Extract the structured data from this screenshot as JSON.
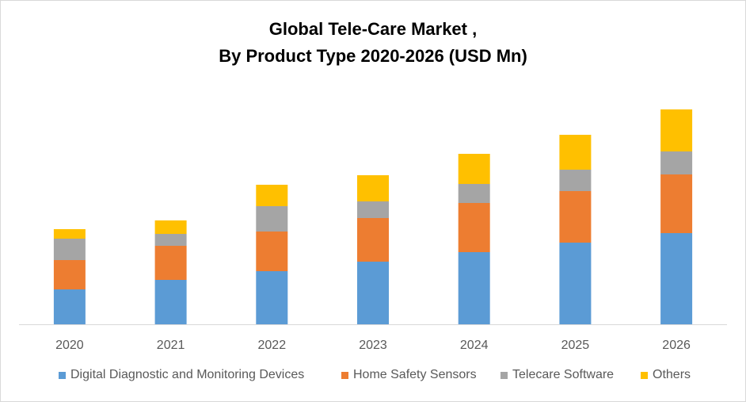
{
  "chart_data": {
    "type": "bar",
    "stacked": true,
    "title": "Global Tele-Care Market ,",
    "subtitle": "By Product Type 2020-2026 (USD Mn)",
    "xlabel": "",
    "ylabel": "",
    "categories": [
      "2020",
      "2021",
      "2022",
      "2023",
      "2024",
      "2025",
      "2026"
    ],
    "series": [
      {
        "name": "Digital Diagnostic and Monitoring Devices",
        "color": "#5b9bd5",
        "values": [
          44,
          56,
          67,
          79,
          91,
          103,
          115
        ]
      },
      {
        "name": "Home Safety Sensors",
        "color": "#ed7d31",
        "values": [
          37,
          43,
          50,
          55,
          62,
          65,
          74
        ]
      },
      {
        "name": "Telecare Software",
        "color": "#a5a5a5",
        "values": [
          27,
          15,
          32,
          21,
          24,
          27,
          29
        ]
      },
      {
        "name": "Others",
        "color": "#ffc000",
        "values": [
          12,
          17,
          27,
          33,
          38,
          44,
          53
        ]
      }
    ],
    "ylim": [
      0,
      300
    ],
    "y_axis_visible": false,
    "grid": false,
    "legend_position": "bottom"
  }
}
